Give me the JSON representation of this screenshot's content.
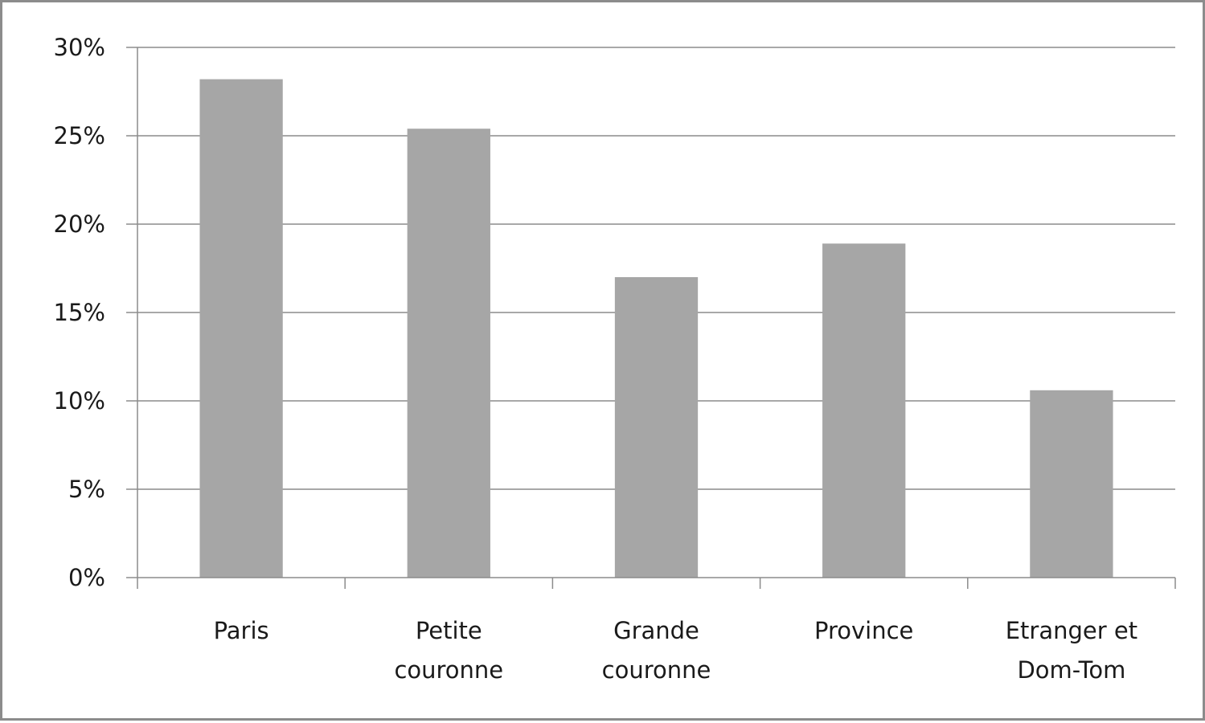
{
  "chart_data": {
    "type": "bar",
    "categories": [
      [
        "Paris"
      ],
      [
        "Petite",
        "couronne"
      ],
      [
        "Grande",
        "couronne"
      ],
      [
        "Province"
      ],
      [
        "Etranger et",
        "Dom-Tom"
      ]
    ],
    "values": [
      28.2,
      25.4,
      17.0,
      18.9,
      10.6
    ],
    "ylim": [
      0,
      30
    ],
    "yticks": [
      0,
      5,
      10,
      15,
      20,
      25,
      30
    ],
    "ytick_labels": [
      "0%",
      "5%",
      "10%",
      "15%",
      "20%",
      "25%",
      "30%"
    ],
    "grid": true,
    "legend": "none",
    "colors": {
      "bar": "#a6a6a6",
      "grid": "#8c8c8c",
      "axis": "#8c8c8c",
      "text": "#1a1a1a",
      "frame": "#8c8c8c"
    }
  }
}
